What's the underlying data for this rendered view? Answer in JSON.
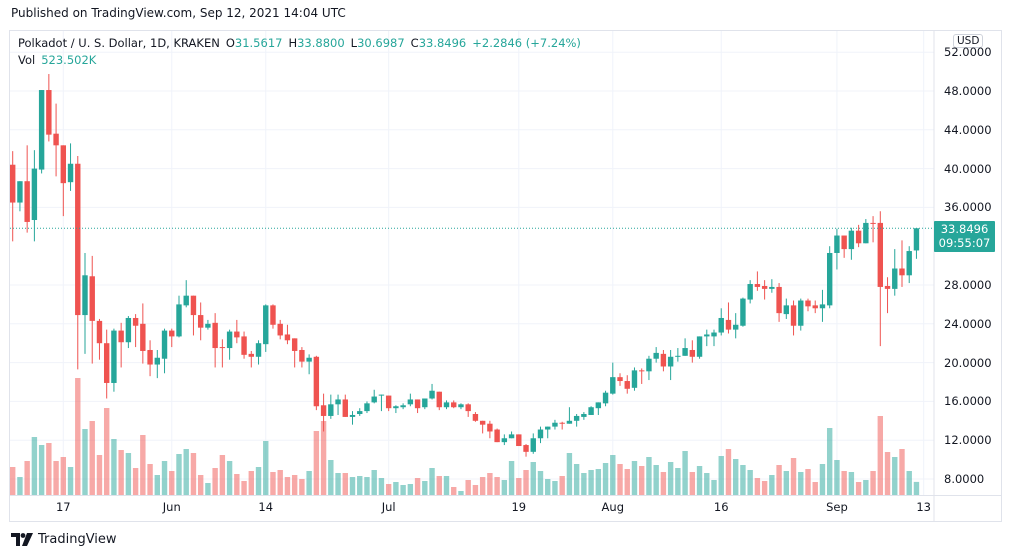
{
  "published": "Published on TradingView.com, Sep 12, 2021 14:04 UTC",
  "legend": {
    "symbol": "Polkadot / U. S. Dollar, 1D, KRAKEN",
    "open_label": "O",
    "open": "31.5617",
    "high_label": "H",
    "high": "33.8800",
    "low_label": "L",
    "low": "30.6987",
    "close_label": "C",
    "close": "33.8496",
    "change": "+2.2846 (+7.24%)",
    "vol_label": "Vol",
    "vol": "523.502K"
  },
  "currency_button": "USD",
  "last_price": {
    "price": "33.8496",
    "countdown": "09:55:07"
  },
  "footer": {
    "brand": "TradingView",
    "logo_icon": "tradingview-logo-icon"
  },
  "colors": {
    "up": "#26a69a",
    "down": "#ef5350",
    "grid": "#f0f3fa"
  },
  "chart_data": {
    "type": "candlestick",
    "interval": "1D",
    "yaxis": {
      "ticks": [
        "52.0000",
        "48.0000",
        "44.0000",
        "40.0000",
        "36.0000",
        "28.0000",
        "24.0000",
        "20.0000",
        "16.0000",
        "12.0000",
        "8.0000"
      ],
      "ylim": [
        6.4,
        53.5
      ]
    },
    "xaxis": {
      "ticks": [
        "17",
        "Jun",
        "14",
        "Jul",
        "19",
        "Aug",
        "16",
        "Sep",
        "13"
      ]
    },
    "grid": true,
    "columns": [
      "open",
      "high",
      "low",
      "close",
      "volume_k"
    ],
    "candles": [
      [
        40.4,
        41.8,
        32.5,
        36.5,
        1120
      ],
      [
        36.5,
        38.7,
        35.6,
        38.7,
        720
      ],
      [
        38.7,
        42.4,
        33.4,
        34.5,
        1360
      ],
      [
        34.7,
        41.9,
        32.5,
        40.0,
        2320
      ],
      [
        39.9,
        48.1,
        39.5,
        48.1,
        2000
      ],
      [
        48.1,
        49.75,
        42.8,
        43.5,
        2080
      ],
      [
        43.6,
        46.7,
        39.2,
        42.4,
        1360
      ],
      [
        42.4,
        42.4,
        35.1,
        38.5,
        1520
      ],
      [
        38.6,
        42.6,
        37.7,
        40.5,
        1120
      ],
      [
        40.5,
        41.3,
        19.3,
        24.9,
        4680
      ],
      [
        24.9,
        31.3,
        20.9,
        29.0,
        2640
      ],
      [
        28.9,
        31.0,
        19.9,
        24.3,
        2960
      ],
      [
        24.3,
        24.5,
        20.3,
        22.0,
        1600
      ],
      [
        22.0,
        23.4,
        16.3,
        17.9,
        3480
      ],
      [
        17.9,
        23.5,
        17.0,
        23.3,
        2240
      ],
      [
        23.3,
        24.1,
        19.5,
        22.1,
        1800
      ],
      [
        22.1,
        24.8,
        21.5,
        24.6,
        1680
      ],
      [
        24.6,
        25.0,
        21.6,
        23.8,
        1080
      ],
      [
        24.0,
        26.1,
        19.9,
        21.2,
        2400
      ],
      [
        21.3,
        22.3,
        18.6,
        19.8,
        1240
      ],
      [
        19.8,
        21.3,
        18.4,
        20.5,
        800
      ],
      [
        20.4,
        23.5,
        18.9,
        23.3,
        1360
      ],
      [
        23.3,
        23.5,
        21.6,
        22.7,
        960
      ],
      [
        22.7,
        26.9,
        22.6,
        26.0,
        1640
      ],
      [
        25.9,
        28.5,
        25.7,
        26.9,
        1840
      ],
      [
        26.9,
        26.9,
        22.8,
        24.9,
        1680
      ],
      [
        24.9,
        26.2,
        22.3,
        23.6,
        800
      ],
      [
        23.6,
        24.4,
        23.4,
        24.0,
        480
      ],
      [
        24.1,
        25.1,
        19.5,
        21.5,
        1080
      ],
      [
        21.6,
        22.4,
        19.5,
        21.5,
        1600
      ],
      [
        21.5,
        23.4,
        20.3,
        23.2,
        1360
      ],
      [
        23.2,
        24.4,
        22.0,
        22.6,
        840
      ],
      [
        22.7,
        23.2,
        20.4,
        20.8,
        560
      ],
      [
        20.9,
        21.2,
        19.5,
        20.6,
        960
      ],
      [
        20.6,
        22.3,
        19.8,
        22.0,
        1120
      ],
      [
        21.9,
        26.0,
        21.1,
        25.9,
        2160
      ],
      [
        25.9,
        26.0,
        23.5,
        23.9,
        920
      ],
      [
        24.0,
        24.4,
        22.4,
        22.8,
        1000
      ],
      [
        22.9,
        23.9,
        21.9,
        22.3,
        720
      ],
      [
        22.5,
        22.5,
        19.5,
        21.2,
        800
      ],
      [
        21.3,
        21.6,
        19.5,
        20.1,
        640
      ],
      [
        20.1,
        20.85,
        18.8,
        20.5,
        960
      ],
      [
        20.6,
        20.7,
        15.1,
        15.5,
        2560
      ],
      [
        15.6,
        16.8,
        12.9,
        14.5,
        2960
      ],
      [
        14.5,
        16.7,
        14.2,
        15.7,
        1400
      ],
      [
        15.7,
        16.7,
        14.6,
        16.2,
        880
      ],
      [
        16.2,
        16.7,
        14.4,
        14.4,
        880
      ],
      [
        14.4,
        15.0,
        13.6,
        14.6,
        720
      ],
      [
        14.7,
        15.3,
        14.5,
        15.0,
        760
      ],
      [
        15.0,
        16.0,
        14.8,
        15.8,
        720
      ],
      [
        15.9,
        17.2,
        15.8,
        16.5,
        1000
      ],
      [
        16.6,
        16.7,
        15.0,
        16.7,
        680
      ],
      [
        16.6,
        16.6,
        15.0,
        15.3,
        440
      ],
      [
        15.3,
        15.6,
        14.8,
        15.5,
        520
      ],
      [
        15.4,
        15.8,
        15.2,
        15.6,
        400
      ],
      [
        15.7,
        16.8,
        15.5,
        16.2,
        440
      ],
      [
        16.2,
        16.2,
        14.8,
        15.3,
        680
      ],
      [
        15.4,
        16.3,
        15.2,
        16.3,
        560
      ],
      [
        16.3,
        17.8,
        16.2,
        17.1,
        1080
      ],
      [
        17.0,
        17.0,
        15.1,
        15.4,
        760
      ],
      [
        15.4,
        16.1,
        15.2,
        15.9,
        760
      ],
      [
        15.9,
        16.1,
        15.3,
        15.4,
        320
      ],
      [
        15.4,
        15.8,
        15.2,
        15.7,
        160
      ],
      [
        15.7,
        15.8,
        14.4,
        15.0,
        600
      ],
      [
        14.7,
        14.9,
        13.9,
        14.0,
        400
      ],
      [
        14.0,
        14.0,
        12.7,
        13.6,
        720
      ],
      [
        13.7,
        14.0,
        12.2,
        12.9,
        880
      ],
      [
        13.1,
        13.2,
        11.8,
        11.8,
        720
      ],
      [
        11.8,
        12.6,
        11.5,
        12.2,
        600
      ],
      [
        12.2,
        12.9,
        12.2,
        12.6,
        1360
      ],
      [
        12.6,
        12.6,
        11.4,
        11.4,
        680
      ],
      [
        11.5,
        11.6,
        10.3,
        10.8,
        1000
      ],
      [
        10.8,
        12.7,
        10.6,
        12.2,
        1320
      ],
      [
        12.2,
        13.4,
        11.7,
        13.1,
        960
      ],
      [
        13.1,
        13.4,
        12.2,
        13.4,
        640
      ],
      [
        13.4,
        14.1,
        13.1,
        13.8,
        560
      ],
      [
        13.8,
        13.9,
        13.1,
        13.7,
        760
      ],
      [
        13.7,
        15.4,
        13.7,
        14.0,
        1680
      ],
      [
        14.0,
        14.7,
        13.4,
        14.5,
        1240
      ],
      [
        14.4,
        14.9,
        14.1,
        14.7,
        880
      ],
      [
        14.6,
        15.5,
        14.6,
        15.4,
        1000
      ],
      [
        15.3,
        15.9,
        14.6,
        15.9,
        1040
      ],
      [
        15.8,
        17.1,
        15.5,
        16.9,
        1280
      ],
      [
        16.8,
        20.0,
        16.7,
        18.5,
        1600
      ],
      [
        18.5,
        18.9,
        17.6,
        18.1,
        1240
      ],
      [
        18.1,
        18.7,
        16.8,
        17.3,
        1040
      ],
      [
        17.4,
        19.5,
        17.1,
        19.2,
        1360
      ],
      [
        19.2,
        19.4,
        17.8,
        19.1,
        1160
      ],
      [
        19.1,
        20.7,
        18.2,
        20.4,
        1520
      ],
      [
        20.4,
        21.6,
        20.0,
        21.0,
        1200
      ],
      [
        20.9,
        21.3,
        19.1,
        19.6,
        920
      ],
      [
        19.6,
        21.3,
        18.2,
        20.6,
        1320
      ],
      [
        20.6,
        21.5,
        20.1,
        20.7,
        1080
      ],
      [
        20.7,
        22.5,
        20.7,
        21.5,
        1760
      ],
      [
        21.3,
        22.3,
        20.0,
        20.6,
        920
      ],
      [
        20.6,
        22.7,
        20.4,
        22.7,
        1160
      ],
      [
        22.7,
        23.4,
        21.7,
        22.9,
        880
      ],
      [
        22.7,
        23.4,
        21.7,
        23.1,
        600
      ],
      [
        23.1,
        25.6,
        22.8,
        24.6,
        1560
      ],
      [
        24.4,
        26.2,
        23.0,
        23.4,
        1840
      ],
      [
        23.4,
        25.1,
        22.5,
        23.9,
        1440
      ],
      [
        23.8,
        26.7,
        23.7,
        26.6,
        1200
      ],
      [
        26.5,
        28.5,
        26.1,
        28.1,
        1000
      ],
      [
        28.1,
        29.4,
        27.4,
        27.8,
        680
      ],
      [
        27.9,
        28.5,
        26.5,
        27.6,
        560
      ],
      [
        27.6,
        28.6,
        27.2,
        27.8,
        800
      ],
      [
        27.8,
        28.2,
        24.2,
        25.1,
        1200
      ],
      [
        25.0,
        26.6,
        24.5,
        25.9,
        960
      ],
      [
        25.9,
        26.4,
        22.8,
        23.8,
        1480
      ],
      [
        23.8,
        26.6,
        23.3,
        26.4,
        920
      ],
      [
        26.4,
        26.6,
        25.3,
        25.8,
        1040
      ],
      [
        25.9,
        26.4,
        25.1,
        25.6,
        520
      ],
      [
        25.6,
        27.5,
        24.2,
        26.0,
        1240
      ],
      [
        25.9,
        32.0,
        25.6,
        31.3,
        2680
      ],
      [
        31.3,
        33.8,
        29.6,
        33.1,
        1400
      ],
      [
        33.1,
        33.1,
        30.8,
        31.7,
        960
      ],
      [
        31.7,
        33.9,
        30.6,
        33.6,
        920
      ],
      [
        33.6,
        34.2,
        31.9,
        32.3,
        520
      ],
      [
        32.3,
        34.8,
        32.3,
        34.4,
        600
      ],
      [
        34.4,
        35.1,
        32.4,
        34.3,
        960
      ],
      [
        34.4,
        35.6,
        21.7,
        27.8,
        3160
      ],
      [
        27.9,
        28.8,
        25.1,
        27.6,
        1720
      ],
      [
        27.6,
        31.7,
        26.9,
        29.7,
        1520
      ],
      [
        29.7,
        32.6,
        27.8,
        29.0,
        1840
      ],
      [
        29.0,
        32.0,
        28.2,
        31.5,
        960
      ],
      [
        31.5617,
        33.88,
        30.6987,
        33.8496,
        523.5
      ]
    ]
  }
}
